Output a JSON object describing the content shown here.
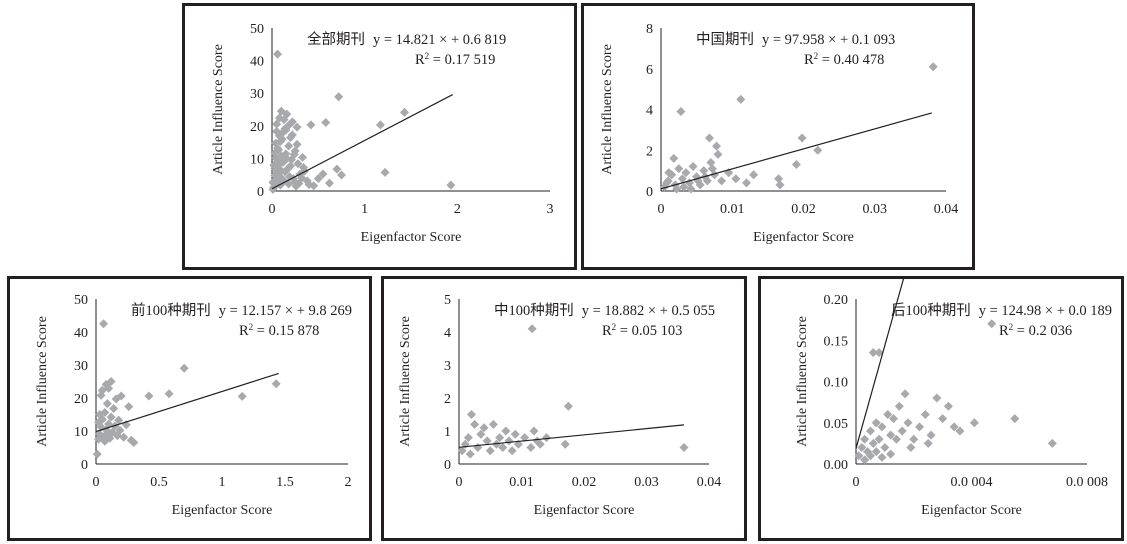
{
  "chart_data": [
    {
      "type": "scatter",
      "title": "",
      "xlabel": "Eigenfactor Score",
      "ylabel": "Article Influence Score",
      "legend": "none",
      "grid": false,
      "xlim": [
        0,
        3
      ],
      "ylim": [
        0,
        50
      ],
      "x_ticks": [
        "0",
        "1",
        "2",
        "3"
      ],
      "y_ticks": [
        "0",
        "10",
        "20",
        "30",
        "40",
        "50"
      ],
      "annotation": {
        "group": "全部期刊",
        "equation": "y = 14.821 × + 0.6 819",
        "r2_label": "R",
        "r2_value": " = 0.17 519"
      },
      "trendline": {
        "slope": 14.821,
        "intercept": 0.6819,
        "x_range": [
          0,
          1.95
        ]
      },
      "marker_color": "#a7a9ac",
      "points": [
        [
          0.02,
          1.2
        ],
        [
          0.05,
          2.1
        ],
        [
          0.08,
          3.5
        ],
        [
          0.03,
          4.8
        ],
        [
          0.1,
          6.2
        ],
        [
          0.06,
          7.5
        ],
        [
          0.12,
          8.8
        ],
        [
          0.04,
          10.1
        ],
        [
          0.15,
          11.4
        ],
        [
          0.07,
          12.6
        ],
        [
          0.18,
          13.8
        ],
        [
          0.09,
          15.2
        ],
        [
          0.2,
          16.4
        ],
        [
          0.11,
          17.8
        ],
        [
          0.14,
          19.1
        ],
        [
          0.05,
          20.5
        ],
        [
          0.22,
          21.2
        ],
        [
          0.08,
          22.4
        ],
        [
          0.16,
          23.6
        ],
        [
          0.1,
          24.5
        ],
        [
          0.06,
          5.5
        ],
        [
          0.13,
          3.2
        ],
        [
          0.25,
          2.6
        ],
        [
          0.3,
          5.1
        ],
        [
          0.28,
          8.4
        ],
        [
          0.21,
          9.6
        ],
        [
          0.17,
          6.8
        ],
        [
          0.19,
          4.4
        ],
        [
          0.24,
          11.2
        ],
        [
          0.27,
          14.3
        ],
        [
          0.01,
          0.5
        ],
        [
          0.02,
          3.0
        ],
        [
          0.04,
          6.6
        ],
        [
          0.07,
          9.2
        ],
        [
          0.09,
          1.8
        ],
        [
          0.12,
          2.9
        ],
        [
          0.14,
          5.9
        ],
        [
          0.16,
          9.9
        ],
        [
          0.18,
          2.2
        ],
        [
          0.2,
          7.7
        ],
        [
          0.23,
          3.8
        ],
        [
          0.26,
          1.5
        ],
        [
          0.29,
          2.3
        ],
        [
          0.32,
          4.0
        ],
        [
          0.35,
          6.1
        ],
        [
          0.38,
          3.1
        ],
        [
          0.4,
          2.0
        ],
        [
          0.05,
          18.3
        ],
        [
          0.11,
          15.9
        ],
        [
          0.06,
          13.1
        ],
        [
          0.03,
          11.6
        ],
        [
          0.08,
          16.9
        ],
        [
          0.15,
          18.7
        ],
        [
          0.19,
          20.4
        ],
        [
          0.22,
          17.2
        ],
        [
          0.13,
          21.9
        ],
        [
          0.1,
          10.7
        ],
        [
          0.07,
          8.1
        ],
        [
          0.04,
          14.7
        ],
        [
          0.09,
          4.3
        ],
        [
          0.06,
          42
        ],
        [
          0.42,
          20.3
        ],
        [
          0.58,
          21.0
        ],
        [
          0.5,
          3.8
        ],
        [
          0.72,
          28.9
        ],
        [
          0.7,
          6.7
        ],
        [
          0.75,
          4.9
        ],
        [
          1.17,
          20.3
        ],
        [
          1.22,
          5.7
        ],
        [
          1.43,
          24.1
        ],
        [
          1.93,
          1.8
        ],
        [
          0.34,
          7.2
        ],
        [
          0.45,
          1.6
        ],
        [
          0.55,
          5.2
        ],
        [
          0.62,
          2.4
        ],
        [
          0.27,
          19.6
        ],
        [
          0.25,
          12.3
        ],
        [
          0.33,
          10.3
        ],
        [
          0.02,
          7.9
        ],
        [
          0.01,
          2.6
        ]
      ]
    },
    {
      "type": "scatter",
      "title": "",
      "xlabel": "Eigenfactor Score",
      "ylabel": "Article Influence Score",
      "legend": "none",
      "grid": false,
      "xlim": [
        0,
        0.04
      ],
      "ylim": [
        0,
        8
      ],
      "x_ticks": [
        "0",
        "0.01",
        "0.02",
        "0.03",
        "0.04"
      ],
      "y_ticks": [
        "0",
        "2",
        "4",
        "6",
        "8"
      ],
      "annotation": {
        "group": "中国期刊",
        "equation": "y = 97.958 × + 0.1 093",
        "r2_label": "R",
        "r2_value": " = 0.40 478"
      },
      "trendline": {
        "slope": 97.958,
        "intercept": 0.1093,
        "x_range": [
          0,
          0.038
        ]
      },
      "marker_color": "#a7a9ac",
      "points": [
        [
          0.0005,
          0.2
        ],
        [
          0.001,
          0.5
        ],
        [
          0.0015,
          0.8
        ],
        [
          0.002,
          0.3
        ],
        [
          0.0025,
          1.1
        ],
        [
          0.003,
          0.6
        ],
        [
          0.0035,
          0.9
        ],
        [
          0.004,
          0.4
        ],
        [
          0.0045,
          1.2
        ],
        [
          0.005,
          0.7
        ],
        [
          0.0055,
          0.3
        ],
        [
          0.006,
          1.0
        ],
        [
          0.0065,
          0.5
        ],
        [
          0.007,
          1.4
        ],
        [
          0.0075,
          0.8
        ],
        [
          0.008,
          1.8
        ],
        [
          0.0068,
          2.6
        ],
        [
          0.0078,
          2.2
        ],
        [
          0.0028,
          3.9
        ],
        [
          0.0112,
          4.5
        ],
        [
          0.0085,
          0.5
        ],
        [
          0.0095,
          0.9
        ],
        [
          0.0105,
          0.6
        ],
        [
          0.012,
          0.4
        ],
        [
          0.013,
          0.8
        ],
        [
          0.0165,
          0.6
        ],
        [
          0.0167,
          0.3
        ],
        [
          0.019,
          1.3
        ],
        [
          0.0198,
          2.6
        ],
        [
          0.022,
          2.0
        ],
        [
          0.0382,
          6.1
        ],
        [
          0.0018,
          1.6
        ],
        [
          0.0022,
          0.1
        ],
        [
          0.0032,
          0.2
        ],
        [
          0.0042,
          0.1
        ],
        [
          0.0052,
          0.5
        ],
        [
          0.0062,
          0.7
        ],
        [
          0.0072,
          1.1
        ],
        [
          0.0011,
          0.9
        ],
        [
          0.0008,
          0.4
        ]
      ]
    },
    {
      "type": "scatter",
      "title": "",
      "xlabel": "Eigenfactor Score",
      "ylabel": "Article Influence Score",
      "legend": "none",
      "grid": false,
      "xlim": [
        0,
        2
      ],
      "ylim": [
        0,
        50
      ],
      "x_ticks": [
        "0",
        "0.5",
        "1",
        "1.5",
        "2"
      ],
      "y_ticks": [
        "0",
        "10",
        "20",
        "30",
        "40",
        "50"
      ],
      "annotation": {
        "group": "前100种期刊",
        "equation": "y = 12.157 × + 9.8 269",
        "r2_label": "R",
        "r2_value": " = 0.15 878"
      },
      "trendline": {
        "slope": 12.157,
        "intercept": 9.8269,
        "x_range": [
          0,
          1.45
        ]
      },
      "marker_color": "#a7a9ac",
      "points": [
        [
          0.01,
          3.0
        ],
        [
          0.02,
          7.5
        ],
        [
          0.03,
          9.0
        ],
        [
          0.04,
          11.2
        ],
        [
          0.05,
          13.5
        ],
        [
          0.06,
          8.2
        ],
        [
          0.07,
          15.6
        ],
        [
          0.08,
          10.4
        ],
        [
          0.09,
          18.3
        ],
        [
          0.1,
          12.1
        ],
        [
          0.11,
          7.8
        ],
        [
          0.12,
          14.2
        ],
        [
          0.13,
          9.6
        ],
        [
          0.14,
          16.8
        ],
        [
          0.15,
          11.5
        ],
        [
          0.16,
          19.7
        ],
        [
          0.17,
          8.6
        ],
        [
          0.18,
          13.3
        ],
        [
          0.19,
          10.2
        ],
        [
          0.2,
          20.6
        ],
        [
          0.22,
          8.1
        ],
        [
          0.24,
          11.9
        ],
        [
          0.26,
          17.4
        ],
        [
          0.28,
          7.2
        ],
        [
          0.3,
          6.5
        ],
        [
          0.05,
          22.3
        ],
        [
          0.08,
          24.1
        ],
        [
          0.04,
          20.8
        ],
        [
          0.1,
          22.9
        ],
        [
          0.12,
          25.0
        ],
        [
          0.06,
          42.5
        ],
        [
          0.42,
          20.6
        ],
        [
          0.58,
          21.3
        ],
        [
          0.7,
          29.0
        ],
        [
          1.16,
          20.5
        ],
        [
          1.43,
          24.3
        ],
        [
          0.02,
          12.6
        ],
        [
          0.03,
          15.0
        ],
        [
          0.07,
          6.9
        ],
        [
          0.09,
          9.3
        ]
      ]
    },
    {
      "type": "scatter",
      "title": "",
      "xlabel": "Eigenfactor Score",
      "ylabel": "Article Influence Score",
      "legend": "none",
      "grid": false,
      "xlim": [
        0,
        0.04
      ],
      "ylim": [
        0,
        5
      ],
      "x_ticks": [
        "0",
        "0.01",
        "0.02",
        "0.03",
        "0.04"
      ],
      "y_ticks": [
        "0",
        "1",
        "2",
        "3",
        "4",
        "5"
      ],
      "annotation": {
        "group": "中100种期刊",
        "equation": "y = 18.882 × + 0.5 055",
        "r2_label": "R",
        "r2_value": " = 0.05 103"
      },
      "trendline": {
        "slope": 18.882,
        "intercept": 0.5055,
        "x_range": [
          0,
          0.036
        ]
      },
      "marker_color": "#a7a9ac",
      "points": [
        [
          0.0005,
          0.4
        ],
        [
          0.001,
          0.6
        ],
        [
          0.0015,
          0.8
        ],
        [
          0.002,
          1.5
        ],
        [
          0.0025,
          1.2
        ],
        [
          0.003,
          0.5
        ],
        [
          0.0035,
          0.9
        ],
        [
          0.004,
          1.1
        ],
        [
          0.0045,
          0.7
        ],
        [
          0.005,
          0.4
        ],
        [
          0.0055,
          1.2
        ],
        [
          0.006,
          0.6
        ],
        [
          0.0065,
          0.8
        ],
        [
          0.007,
          0.5
        ],
        [
          0.0075,
          1.0
        ],
        [
          0.008,
          0.7
        ],
        [
          0.0085,
          0.4
        ],
        [
          0.009,
          0.9
        ],
        [
          0.0095,
          0.6
        ],
        [
          0.0105,
          0.8
        ],
        [
          0.0115,
          0.5
        ],
        [
          0.012,
          1.0
        ],
        [
          0.0125,
          0.7
        ],
        [
          0.013,
          0.6
        ],
        [
          0.014,
          0.8
        ],
        [
          0.0175,
          1.75
        ],
        [
          0.017,
          0.6
        ],
        [
          0.0117,
          4.1
        ],
        [
          0.036,
          0.5
        ],
        [
          0.0018,
          0.3
        ]
      ]
    },
    {
      "type": "scatter",
      "title": "",
      "xlabel": "Eigenfactor Score",
      "ylabel": "Article Influence Score",
      "legend": "none",
      "grid": false,
      "xlim": [
        0,
        0.008
      ],
      "ylim": [
        0,
        0.2
      ],
      "x_ticks": [
        "0",
        "0.0 004",
        "0.0 008"
      ],
      "y_ticks": [
        "0.00",
        "0.05",
        "0.10",
        "0.15",
        "0.20"
      ],
      "annotation": {
        "group": "后100种期刊",
        "equation": "y = 124.98 × + 0.0 189",
        "r2_label": "R",
        "r2_value": " = 0.2 036"
      },
      "trendline": {
        "slope": 124.98,
        "intercept": 0.0189,
        "x_range": [
          0,
          0.0067
        ]
      },
      "marker_color": "#a7a9ac",
      "points": [
        [
          0.0001,
          0.01
        ],
        [
          0.0002,
          0.02
        ],
        [
          0.0003,
          0.03
        ],
        [
          0.0004,
          0.015
        ],
        [
          0.0005,
          0.04
        ],
        [
          0.0006,
          0.025
        ],
        [
          0.0007,
          0.05
        ],
        [
          0.0008,
          0.03
        ],
        [
          0.0009,
          0.045
        ],
        [
          0.001,
          0.02
        ],
        [
          0.0011,
          0.06
        ],
        [
          0.0012,
          0.035
        ],
        [
          0.0013,
          0.055
        ],
        [
          0.0014,
          0.03
        ],
        [
          0.0015,
          0.07
        ],
        [
          0.0016,
          0.04
        ],
        [
          0.0017,
          0.085
        ],
        [
          0.0018,
          0.05
        ],
        [
          0.002,
          0.03
        ],
        [
          0.0022,
          0.045
        ],
        [
          0.0024,
          0.06
        ],
        [
          0.0026,
          0.035
        ],
        [
          0.0028,
          0.08
        ],
        [
          0.003,
          0.055
        ],
        [
          0.0032,
          0.07
        ],
        [
          0.0034,
          0.045
        ],
        [
          0.0006,
          0.135
        ],
        [
          0.0008,
          0.135
        ],
        [
          0.0047,
          0.17
        ],
        [
          0.0055,
          0.055
        ],
        [
          0.0068,
          0.025
        ],
        [
          0.0041,
          0.05
        ],
        [
          0.0036,
          0.04
        ],
        [
          0.0003,
          0.005
        ],
        [
          0.0005,
          0.01
        ],
        [
          0.0009,
          0.008
        ],
        [
          0.0012,
          0.012
        ],
        [
          0.0019,
          0.02
        ],
        [
          0.0025,
          0.025
        ],
        [
          0.0007,
          0.015
        ]
      ]
    }
  ]
}
